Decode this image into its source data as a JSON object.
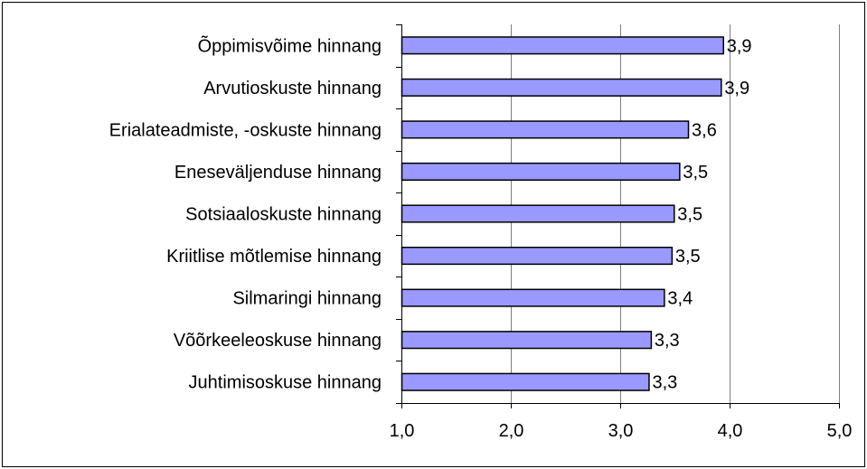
{
  "chart_data": {
    "type": "bar",
    "orientation": "horizontal",
    "title": "",
    "xlabel": "",
    "ylabel": "",
    "categories": [
      "Õppimisvõime hinnang",
      "Arvutioskuste hinnang",
      "Erialateadmiste, -oskuste hinnang",
      "Eneseväljenduse hinnang",
      "Sotsiaaloskuste hinnang",
      "Kriitlise mõtlemise hinnang",
      "Silmaringi hinnang",
      "Võõrkeeleoskuse hinnang",
      "Juhtimisoskuse hinnang"
    ],
    "values": [
      3.94,
      3.92,
      3.62,
      3.54,
      3.49,
      3.47,
      3.4,
      3.28,
      3.26
    ],
    "value_labels": [
      "3,9",
      "3,9",
      "3,6",
      "3,5",
      "3,5",
      "3,5",
      "3,4",
      "3,3",
      "3,3"
    ],
    "xlim": [
      1,
      5
    ],
    "xticks": [
      1,
      2,
      3,
      4,
      5
    ],
    "xtick_labels": [
      "1,0",
      "2,0",
      "3,0",
      "4,0",
      "5,0"
    ],
    "grid": "vertical",
    "legend": "none",
    "colors": {
      "bar_fill": "#9999ff",
      "bar_stroke": "#000000",
      "grid": "#808080",
      "axis": "#000000",
      "background": "#ffffff"
    }
  }
}
